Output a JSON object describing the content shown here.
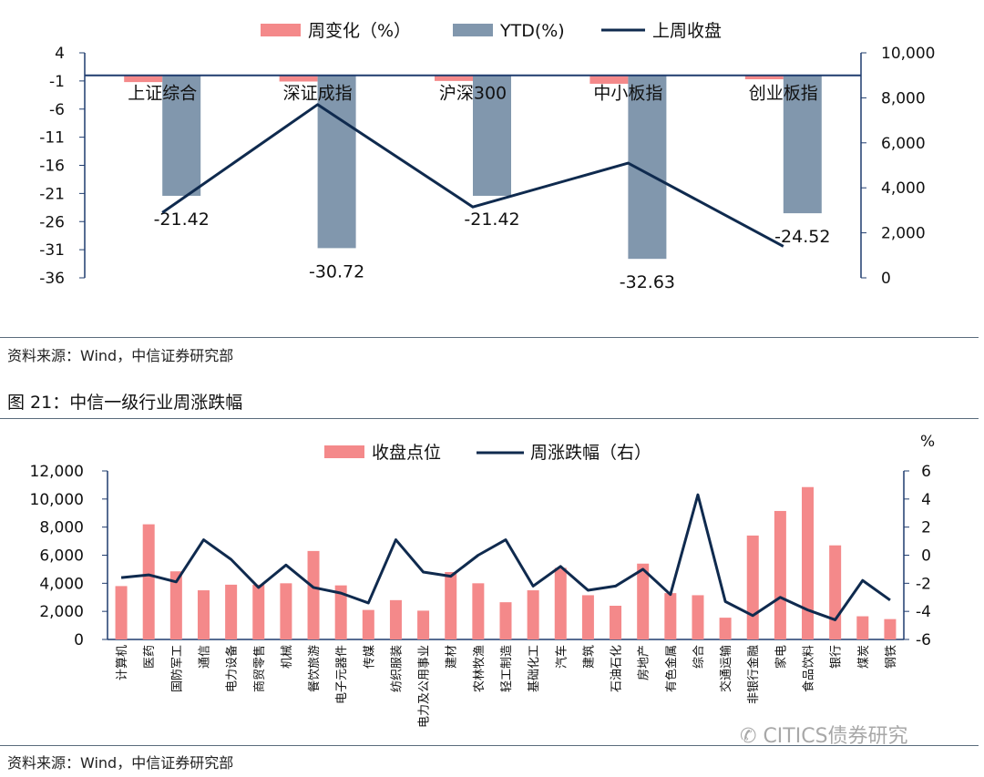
{
  "colors": {
    "bar": "#F4898A",
    "ytd": "#8197AD",
    "line": "#0F2A4E",
    "axis": "#1F3C6E"
  },
  "chart_data": [
    {
      "type": "bar",
      "categories": [
        "上证综合",
        "深证成指",
        "沪深300",
        "中小板指",
        "创业板指"
      ],
      "series": [
        {
          "name": "周变化（%）",
          "type": "bar",
          "axis": "left",
          "values": [
            -1.2,
            -1.1,
            -1.0,
            -1.5,
            -0.7
          ]
        },
        {
          "name": "YTD(%)",
          "type": "bar",
          "axis": "left",
          "values": [
            -21.42,
            -30.72,
            -21.42,
            -32.63,
            -24.52
          ]
        },
        {
          "name": "上周收盘",
          "type": "line",
          "axis": "right",
          "values": [
            2900,
            7700,
            3150,
            5100,
            1400
          ]
        }
      ],
      "data_labels": [
        "-21.42",
        "-30.72",
        "-21.42",
        "-32.63",
        "-24.52"
      ],
      "left_ticks": [
        "4",
        "-1",
        "-6",
        "-11",
        "-16",
        "-21",
        "-26",
        "-31",
        "-36"
      ],
      "right_ticks": [
        "10,000",
        "8,000",
        "6,000",
        "4,000",
        "2,000",
        "0"
      ],
      "ylim_left": [
        -36,
        4
      ],
      "ylim_right": [
        0,
        10000
      ],
      "legend_position": "top"
    },
    {
      "type": "bar",
      "title": "图 21：中信一级行业周涨跌幅",
      "categories": [
        "计算机",
        "医药",
        "国防军工",
        "通信",
        "电力设备",
        "商贸零售",
        "机械",
        "餐饮旅游",
        "电子元器件",
        "传媒",
        "纺织服装",
        "电力及公用事业",
        "建材",
        "农林牧渔",
        "轻工制造",
        "基础化工",
        "汽车",
        "建筑",
        "石油石化",
        "房地产",
        "有色金属",
        "综合",
        "交通运输",
        "非银行金融",
        "家电",
        "食品饮料",
        "银行",
        "煤炭",
        "钢铁"
      ],
      "series": [
        {
          "name": "收盘点位",
          "type": "bar",
          "axis": "left",
          "values": [
            3800,
            8200,
            4850,
            3500,
            3900,
            3900,
            4000,
            6300,
            3850,
            2100,
            2800,
            2050,
            4800,
            4000,
            2650,
            3500,
            5100,
            3150,
            2400,
            5400,
            3300,
            3150,
            1550,
            7400,
            9150,
            10850,
            6700,
            1650,
            1450
          ]
        },
        {
          "name": "周涨跌幅（右）",
          "type": "line",
          "axis": "right",
          "values": [
            -1.6,
            -1.4,
            -1.9,
            1.1,
            -0.3,
            -2.3,
            -0.7,
            -2.3,
            -2.7,
            -3.4,
            1.1,
            -1.2,
            -1.5,
            0.0,
            1.1,
            -2.2,
            -0.8,
            -2.5,
            -2.2,
            -1.0,
            -2.8,
            4.3,
            -3.3,
            -4.3,
            -3.0,
            -3.9,
            -4.6,
            -1.8,
            -3.2
          ]
        }
      ],
      "left_ticks": [
        "12,000",
        "10,000",
        "8,000",
        "6,000",
        "4,000",
        "2,000",
        "0"
      ],
      "right_ticks": [
        "6",
        "4",
        "2",
        "0",
        "-2",
        "-4",
        "-6"
      ],
      "right_unit": "%",
      "ylim_left": [
        0,
        12000
      ],
      "ylim_right": [
        -6,
        6
      ],
      "legend_position": "top"
    }
  ],
  "notes": {
    "source1": "资料来源：Wind，中信证券研究部",
    "source2": "资料来源：Wind，中信证券研究部"
  },
  "figure_title": "图 21：中信一级行业周涨跌幅",
  "watermark": "CITICS债券研究"
}
